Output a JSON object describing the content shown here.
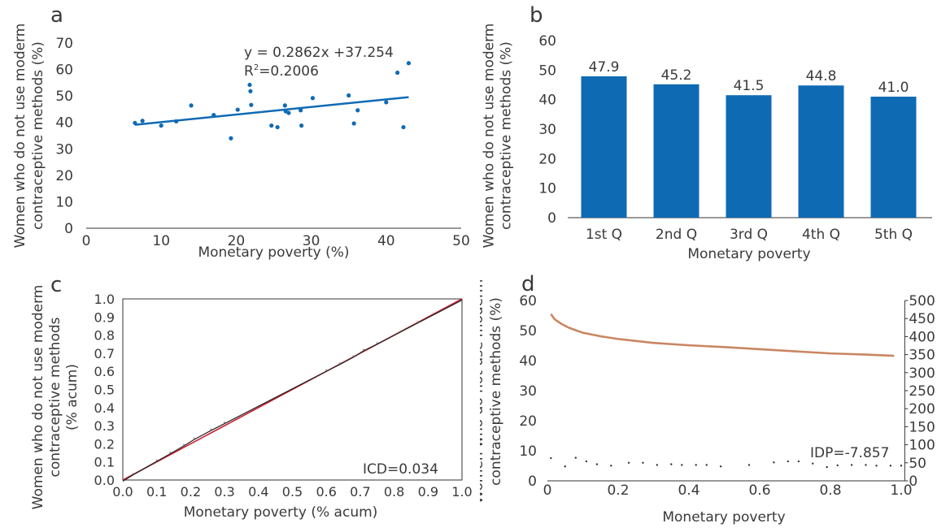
{
  "colors": {
    "blue": "#0f6ab4",
    "red_curve": "#c98662",
    "red_line": "#cc2030",
    "axis": "#333333"
  },
  "chart_data": [
    {
      "panel": "a",
      "type": "scatter",
      "xlabel": "Monetary poverty (%)",
      "ylabel": [
        "Women who do not use moderm",
        "contraceptive methods (%)"
      ],
      "xlim": [
        0,
        50
      ],
      "ylim": [
        0,
        70
      ],
      "xticks": [
        0,
        10,
        20,
        30,
        40,
        50
      ],
      "yticks": [
        0,
        10,
        20,
        30,
        40,
        50,
        60,
        70
      ],
      "equation": "y = 0.2862x +37.254",
      "r2_prefix": "R",
      "r2_sup": "2",
      "r2_value": "=0.2006",
      "trendline": {
        "slope": 0.2862,
        "intercept": 37.254,
        "x_range": [
          6.5,
          43
        ]
      },
      "points": [
        [
          6.5,
          39.8
        ],
        [
          7.5,
          40.6
        ],
        [
          10,
          38.8
        ],
        [
          12,
          40.4
        ],
        [
          14,
          46.4
        ],
        [
          17,
          42.8
        ],
        [
          19.3,
          34
        ],
        [
          20.2,
          44.8
        ],
        [
          21.8,
          54.2
        ],
        [
          21.9,
          51.8
        ],
        [
          22,
          46.6
        ],
        [
          24.7,
          38.8
        ],
        [
          25.5,
          38.2
        ],
        [
          26.5,
          46.4
        ],
        [
          26.6,
          44.2
        ],
        [
          27,
          43.6
        ],
        [
          28.6,
          44.6
        ],
        [
          28.7,
          38.8
        ],
        [
          30.2,
          49.2
        ],
        [
          35,
          50.2
        ],
        [
          35.7,
          39.6
        ],
        [
          36.2,
          44.6
        ],
        [
          40,
          47.6
        ],
        [
          41.5,
          58.8
        ],
        [
          42.3,
          38.2
        ],
        [
          43,
          62.4
        ]
      ]
    },
    {
      "panel": "b",
      "type": "bar",
      "xlabel": "Monetary poverty",
      "ylabel": [
        "Women who do not use moderm",
        "contraceptive methods (%)"
      ],
      "ylim": [
        0,
        60
      ],
      "yticks": [
        0,
        10,
        20,
        30,
        40,
        50,
        60
      ],
      "categories": [
        "1st Q",
        "2nd Q",
        "3rd Q",
        "4th Q",
        "5th Q"
      ],
      "values": [
        47.9,
        45.2,
        41.5,
        44.8,
        41.0
      ],
      "value_labels": [
        "47.9",
        "45.2",
        "41.5",
        "44.8",
        "41.0"
      ]
    },
    {
      "panel": "c",
      "type": "line",
      "xlabel": "Monetary poverty (% acum)",
      "ylabel": [
        "Women who do not use moderm",
        "contraceptive methods",
        "(% acum)"
      ],
      "xlim": [
        0,
        1
      ],
      "ylim": [
        0,
        1
      ],
      "xticks": [
        "0.0",
        "0.1",
        "0.2",
        "0.3",
        "0.4",
        "0.5",
        "0.6",
        "0.7",
        "0.8",
        "0.9",
        "1.0"
      ],
      "yticks": [
        "0.0",
        "0.1",
        "0.2",
        "0.3",
        "0.4",
        "0.5",
        "0.6",
        "0.7",
        "0.8",
        "0.9",
        "1.0"
      ],
      "annotation": "ICD=0.034",
      "concentration_curve": [
        [
          0,
          0
        ],
        [
          0.03,
          0.035
        ],
        [
          0.1,
          0.11
        ],
        [
          0.14,
          0.152
        ],
        [
          0.18,
          0.195
        ],
        [
          0.21,
          0.23
        ],
        [
          0.26,
          0.28
        ],
        [
          0.3,
          0.318
        ],
        [
          0.6,
          0.607
        ],
        [
          0.64,
          0.645
        ],
        [
          0.68,
          0.685
        ],
        [
          0.71,
          0.72
        ],
        [
          0.75,
          0.757
        ],
        [
          0.87,
          0.874
        ],
        [
          1,
          1
        ]
      ],
      "equality_line": [
        [
          0,
          0
        ],
        [
          1,
          1
        ]
      ]
    },
    {
      "panel": "d",
      "type": "line",
      "xlabel": "Monetary poverty",
      "ylabel": [
        "Women who do not use moderm",
        "contraceptive methods (%)"
      ],
      "xlim": [
        0,
        1
      ],
      "ylim": [
        0,
        60
      ],
      "y2lim": [
        0,
        500
      ],
      "xticks": [
        "0",
        "0.2",
        "0.4",
        "0.6",
        "0.8",
        "1.0"
      ],
      "yticks": [
        0,
        10,
        20,
        30,
        40,
        50,
        60
      ],
      "y2ticks": [
        0,
        50,
        100,
        150,
        200,
        250,
        300,
        350,
        400,
        450,
        500
      ],
      "annotation": "IDP=-7.857",
      "curve": [
        [
          0.01,
          55.5
        ],
        [
          0.02,
          53.8
        ],
        [
          0.04,
          52.2
        ],
        [
          0.06,
          51
        ],
        [
          0.08,
          50.1
        ],
        [
          0.1,
          49.3
        ],
        [
          0.15,
          48.1
        ],
        [
          0.2,
          47.2
        ],
        [
          0.3,
          45.9
        ],
        [
          0.4,
          45.1
        ],
        [
          0.5,
          44.5
        ],
        [
          0.6,
          43.8
        ],
        [
          0.7,
          43.1
        ],
        [
          0.8,
          42.4
        ],
        [
          0.9,
          42
        ],
        [
          0.98,
          41.6
        ]
      ],
      "points_y2": [
        [
          0.01,
          63
        ],
        [
          0.05,
          40
        ],
        [
          0.08,
          64
        ],
        [
          0.11,
          54
        ],
        [
          0.14,
          46
        ],
        [
          0.18,
          42
        ],
        [
          0.23,
          50
        ],
        [
          0.27,
          50
        ],
        [
          0.31,
          44
        ],
        [
          0.35,
          46
        ],
        [
          0.38,
          44
        ],
        [
          0.42,
          44
        ],
        [
          0.45,
          44
        ],
        [
          0.49,
          40
        ],
        [
          0.57,
          44
        ],
        [
          0.64,
          51
        ],
        [
          0.68,
          54
        ],
        [
          0.71,
          54
        ],
        [
          0.75,
          48
        ],
        [
          0.79,
          38
        ],
        [
          0.82,
          43
        ],
        [
          0.86,
          44
        ],
        [
          0.9,
          44
        ],
        [
          0.93,
          42
        ],
        [
          0.97,
          42
        ],
        [
          1.0,
          42
        ]
      ]
    }
  ]
}
